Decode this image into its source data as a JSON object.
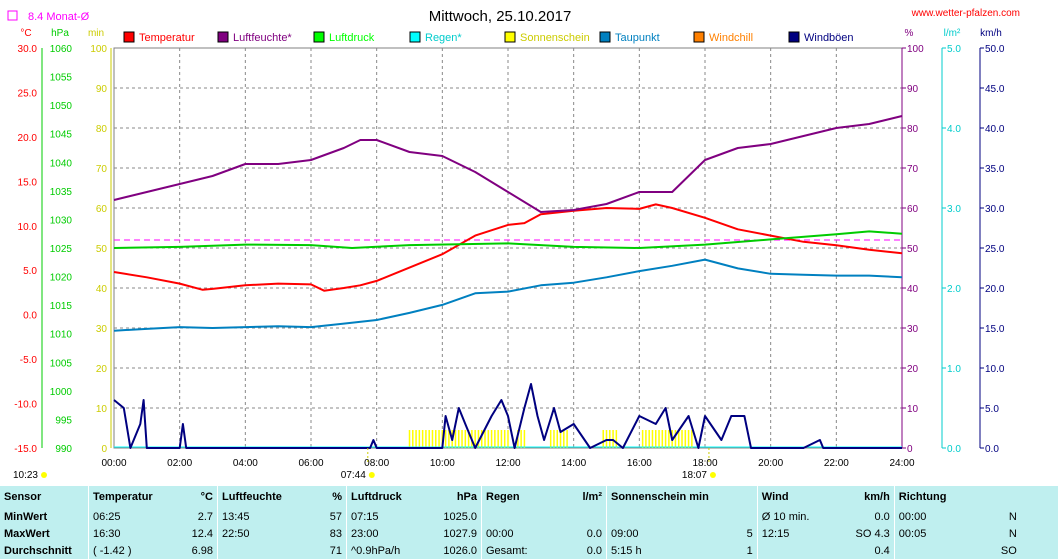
{
  "header": {
    "title": "Mittwoch, 25.10.2017",
    "website": "www.wetter-pfalzen.com",
    "monthly_avg_label": "8.4 Monat-Ø",
    "monthly_avg_color": "#ff00ff"
  },
  "units": {
    "temp": "°C",
    "pressure": "hPa",
    "sun_min": "min",
    "humidity": "%",
    "rain": "l/m²",
    "wind": "km/h"
  },
  "chart_data": {
    "type": "line",
    "title": "Mittwoch, 25.10.2017",
    "x_tick_labels": [
      "00:00",
      "02:00",
      "04:00",
      "06:00",
      "08:00",
      "10:00",
      "12:00",
      "14:00",
      "16:00",
      "18:00",
      "20:00",
      "22:00",
      "24:00"
    ],
    "x_range_hours": [
      0,
      24
    ],
    "axes": {
      "temperature": {
        "range": [
          -15,
          30
        ],
        "ticks": [
          "30.0",
          "25.0",
          "20.0",
          "15.0",
          "10.0",
          "5.0",
          "0.0",
          "-5.0",
          "-10.0",
          "-15.0"
        ],
        "color": "#ff0000"
      },
      "pressure": {
        "range": [
          990,
          1060
        ],
        "ticks": [
          "1060",
          "1055",
          "1050",
          "1045",
          "1040",
          "1035",
          "1030",
          "1025",
          "1020",
          "1015",
          "1010",
          "1005",
          "1000",
          "995",
          "990"
        ],
        "color": "#00cc00"
      },
      "sunshine": {
        "range": [
          0,
          100
        ],
        "ticks": [
          "100",
          "90",
          "80",
          "70",
          "60",
          "50",
          "40",
          "30",
          "20",
          "10",
          "0"
        ],
        "color": "#ffff00"
      },
      "humidity": {
        "range": [
          0,
          100
        ],
        "ticks": [
          "100",
          "90",
          "80",
          "70",
          "60",
          "50",
          "40",
          "30",
          "20",
          "10",
          "0"
        ],
        "color": "#800080"
      },
      "rain": {
        "range": [
          0,
          5
        ],
        "ticks": [
          "5.0",
          "4.0",
          "3.0",
          "2.0",
          "1.0",
          "0.0"
        ],
        "color": "#00cccc"
      },
      "wind": {
        "range": [
          0,
          50
        ],
        "ticks": [
          "50.0",
          "45.0",
          "40.0",
          "35.0",
          "30.0",
          "25.0",
          "20.0",
          "15.0",
          "10.0",
          "5.0",
          "0.0"
        ],
        "color": "#000080"
      }
    },
    "monthly_avg_temp": 8.4,
    "legend": [
      {
        "name": "Temperatur",
        "color": "#ff0000"
      },
      {
        "name": "Luftfeuchte*",
        "color": "#800080"
      },
      {
        "name": "Luftdruck",
        "color": "#00ff00"
      },
      {
        "name": "Regen*",
        "color": "#00ffff"
      },
      {
        "name": "Sonnenschein",
        "color": "#ffff00"
      },
      {
        "name": "Taupunkt",
        "color": "#0080c0"
      },
      {
        "name": "Windchill",
        "color": "#ff8000"
      },
      {
        "name": "Windböen",
        "color": "#000080"
      }
    ],
    "series": [
      {
        "name": "Temperatur",
        "axis": "temperature",
        "color": "#ff0000",
        "points": [
          [
            0,
            4.8
          ],
          [
            1,
            4.2
          ],
          [
            2,
            3.5
          ],
          [
            2.7,
            2.8
          ],
          [
            3,
            2.9
          ],
          [
            4,
            3.3
          ],
          [
            5,
            3.5
          ],
          [
            6,
            3.4
          ],
          [
            6.4,
            2.7
          ],
          [
            7,
            3.0
          ],
          [
            7.5,
            3.3
          ],
          [
            8,
            3.8
          ],
          [
            9,
            5.3
          ],
          [
            10,
            6.8
          ],
          [
            11,
            8.9
          ],
          [
            12,
            10.1
          ],
          [
            12.5,
            10.3
          ],
          [
            13,
            11.3
          ],
          [
            14,
            11.7
          ],
          [
            15,
            12.0
          ],
          [
            16,
            11.9
          ],
          [
            16.5,
            12.4
          ],
          [
            17,
            12.0
          ],
          [
            18,
            10.9
          ],
          [
            19,
            9.6
          ],
          [
            20,
            8.9
          ],
          [
            21,
            8.2
          ],
          [
            22,
            7.8
          ],
          [
            23,
            7.3
          ],
          [
            24,
            6.9
          ]
        ]
      },
      {
        "name": "Luftfeuchte",
        "axis": "humidity",
        "color": "#800080",
        "points": [
          [
            0,
            62
          ],
          [
            1,
            64
          ],
          [
            2,
            66
          ],
          [
            3,
            68
          ],
          [
            4,
            71
          ],
          [
            5,
            71
          ],
          [
            6,
            72
          ],
          [
            7,
            75
          ],
          [
            7.5,
            77
          ],
          [
            8,
            77
          ],
          [
            9,
            74
          ],
          [
            10,
            73
          ],
          [
            11,
            69
          ],
          [
            12,
            64
          ],
          [
            13,
            59
          ],
          [
            14,
            59.5
          ],
          [
            15,
            61
          ],
          [
            16,
            64
          ],
          [
            17,
            64
          ],
          [
            18,
            72
          ],
          [
            19,
            75
          ],
          [
            20,
            76
          ],
          [
            21,
            78
          ],
          [
            22,
            80
          ],
          [
            23,
            81
          ],
          [
            24,
            83
          ]
        ]
      },
      {
        "name": "Luftdruck",
        "axis": "pressure",
        "color": "#00cc00",
        "points": [
          [
            0,
            1025.0
          ],
          [
            2,
            1025.2
          ],
          [
            4,
            1025.6
          ],
          [
            6,
            1025.5
          ],
          [
            7.25,
            1025.0
          ],
          [
            9,
            1025.5
          ],
          [
            12,
            1025.8
          ],
          [
            14,
            1025.2
          ],
          [
            16,
            1025.0
          ],
          [
            18,
            1025.6
          ],
          [
            20,
            1026.5
          ],
          [
            22,
            1027.4
          ],
          [
            23,
            1027.9
          ],
          [
            24,
            1027.5
          ]
        ]
      },
      {
        "name": "Taupunkt",
        "axis": "temperature",
        "color": "#0080c0",
        "points": [
          [
            0,
            -1.8
          ],
          [
            1,
            -1.6
          ],
          [
            2,
            -1.4
          ],
          [
            3,
            -1.5
          ],
          [
            4,
            -1.4
          ],
          [
            5,
            -1.3
          ],
          [
            6,
            -1.4
          ],
          [
            7,
            -1.0
          ],
          [
            8,
            -0.6
          ],
          [
            9,
            0.2
          ],
          [
            10,
            1.1
          ],
          [
            11,
            2.4
          ],
          [
            12,
            2.6
          ],
          [
            13,
            3.3
          ],
          [
            14,
            3.6
          ],
          [
            15,
            4.2
          ],
          [
            16,
            4.9
          ],
          [
            17,
            5.5
          ],
          [
            18,
            6.2
          ],
          [
            19,
            5.2
          ],
          [
            20,
            4.6
          ],
          [
            21,
            4.5
          ],
          [
            22,
            4.4
          ],
          [
            23,
            4.4
          ],
          [
            24,
            4.2
          ]
        ]
      },
      {
        "name": "Windböen",
        "axis": "wind",
        "color": "#000080",
        "points": [
          [
            0,
            6
          ],
          [
            0.3,
            5
          ],
          [
            0.5,
            0
          ],
          [
            0.8,
            3
          ],
          [
            0.9,
            6
          ],
          [
            1,
            0
          ],
          [
            2,
            0
          ],
          [
            2.1,
            3
          ],
          [
            2.2,
            0
          ],
          [
            7.8,
            0
          ],
          [
            7.9,
            1
          ],
          [
            8,
            0
          ],
          [
            10,
            0
          ],
          [
            10.1,
            4
          ],
          [
            10.3,
            1
          ],
          [
            10.5,
            5
          ],
          [
            10.7,
            3
          ],
          [
            11,
            0
          ],
          [
            11.5,
            4
          ],
          [
            11.8,
            6
          ],
          [
            12,
            4
          ],
          [
            12.2,
            0
          ],
          [
            12.5,
            5
          ],
          [
            12.7,
            8
          ],
          [
            12.9,
            4
          ],
          [
            13.1,
            1
          ],
          [
            13.4,
            5
          ],
          [
            13.6,
            2
          ],
          [
            14,
            3
          ],
          [
            14.5,
            0
          ],
          [
            15,
            1
          ],
          [
            15.2,
            1
          ],
          [
            15.5,
            0
          ],
          [
            16,
            4
          ],
          [
            16.5,
            3
          ],
          [
            16.8,
            5
          ],
          [
            17,
            1
          ],
          [
            17.5,
            4
          ],
          [
            17.8,
            0
          ],
          [
            18,
            4
          ],
          [
            18.5,
            1
          ],
          [
            18.8,
            4
          ],
          [
            19.2,
            4
          ],
          [
            19.4,
            0
          ],
          [
            21,
            0
          ],
          [
            21.5,
            1
          ],
          [
            21.6,
            0
          ],
          [
            24,
            0
          ]
        ]
      }
    ],
    "sunshine_periods": [
      [
        9.0,
        10.9
      ],
      [
        11.0,
        12.0
      ],
      [
        12.3,
        12.5
      ],
      [
        13.3,
        13.8
      ],
      [
        14.9,
        15.3
      ],
      [
        16.1,
        17.7
      ]
    ],
    "time_markers": [
      {
        "label": "10:23",
        "hour": 0
      },
      {
        "label": "07:44",
        "hour": 7.73
      },
      {
        "label": "18:07",
        "hour": 18.12
      }
    ]
  },
  "stats": {
    "header": [
      "Sensor",
      "Temperatur",
      "°C",
      "Luftfeuchte",
      "%",
      "Luftdruck",
      "hPa",
      "Regen",
      "l/m²",
      "Sonnenschein min",
      "",
      "Wind",
      "km/h",
      "Richtung",
      ""
    ],
    "rows": [
      [
        "MinWert",
        "06:25",
        "2.7",
        "13:45",
        "57",
        "07:15",
        "1025.0",
        "",
        "",
        "",
        "",
        "Ø 10 min.",
        "0.0",
        "00:00",
        "N"
      ],
      [
        "MaxWert",
        "16:30",
        "12.4",
        "22:50",
        "83",
        "23:00",
        "1027.9",
        "00:00",
        "0.0",
        "09:00",
        "5",
        "12:15",
        "SO 4.3",
        "00:05",
        "N"
      ],
      [
        "Durchschnitt",
        "( -1.42 )",
        "6.98",
        "",
        "71",
        "^0.9hPa/h",
        "1026.0",
        "Gesamt:",
        "0.0",
        "5:15 h",
        "1",
        "",
        "0.4",
        "",
        "SO"
      ]
    ]
  }
}
